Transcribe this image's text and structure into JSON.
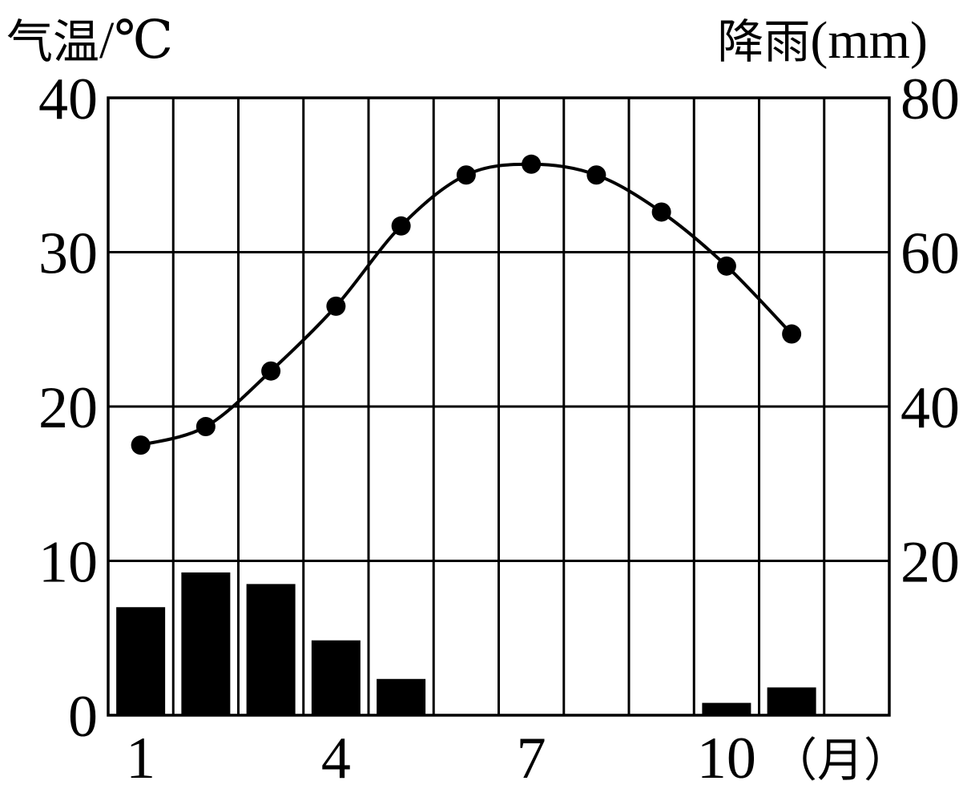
{
  "chart_data": {
    "type": "climate-chart",
    "title": "",
    "months": [
      "1",
      "2",
      "3",
      "4",
      "5",
      "6",
      "7",
      "8",
      "9",
      "10",
      "11",
      "12"
    ],
    "x_tick_labels": [
      {
        "month": 1,
        "label": "1"
      },
      {
        "month": 4,
        "label": "4"
      },
      {
        "month": 7,
        "label": "7"
      },
      {
        "month": 10,
        "label": "10"
      }
    ],
    "x_unit_label": "（月）",
    "temperature": {
      "name": "气温",
      "axis_label_main": "气温",
      "axis_label_unit": "/℃",
      "type": "line",
      "ylim": [
        0,
        40
      ],
      "ticks": [
        "0",
        "10",
        "20",
        "30",
        "40"
      ],
      "tick_values": [
        0,
        10,
        20,
        30,
        40
      ],
      "month_indices": [
        1,
        2,
        3,
        4,
        5,
        6,
        7,
        8,
        9,
        10,
        11
      ],
      "values": [
        17.5,
        18.7,
        22.3,
        26.5,
        31.7,
        35.0,
        35.7,
        35.0,
        32.6,
        29.1,
        24.7
      ]
    },
    "precipitation": {
      "name": "降雨",
      "axis_label_main": "降雨",
      "axis_label_unit": "(mm)",
      "type": "bar",
      "ylim": [
        0,
        80
      ],
      "ticks": [
        "20",
        "40",
        "60",
        "80"
      ],
      "tick_values": [
        20,
        40,
        60,
        80
      ],
      "values": [
        14,
        18.5,
        17,
        9.7,
        4.7,
        0,
        0,
        0,
        0,
        1.6,
        3.6,
        0
      ]
    },
    "grid": true
  },
  "colors": {
    "ink": "#000000",
    "background": "#ffffff"
  }
}
